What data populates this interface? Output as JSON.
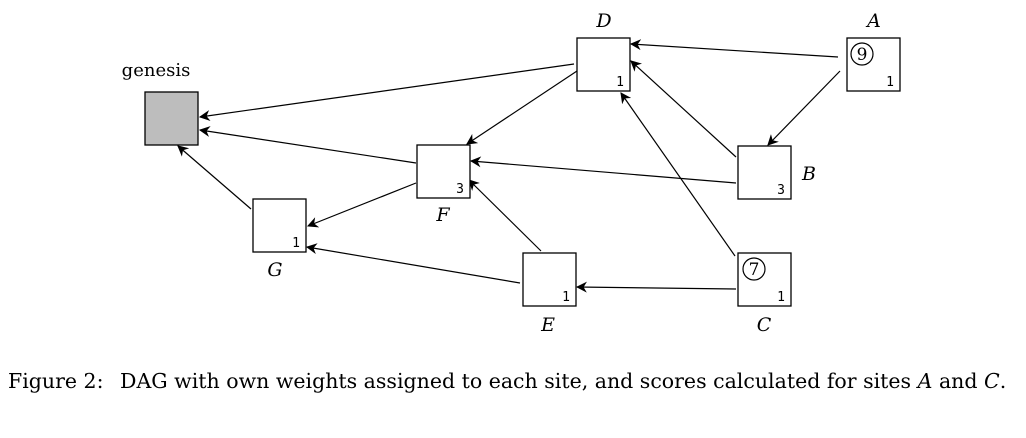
{
  "figure": {
    "genesis_label": "genesis",
    "nodes": [
      {
        "id": "A",
        "label": "A",
        "weight": "1",
        "score": "9"
      },
      {
        "id": "B",
        "label": "B",
        "weight": "3"
      },
      {
        "id": "C",
        "label": "C",
        "weight": "1",
        "score": "7"
      },
      {
        "id": "D",
        "label": "D",
        "weight": "1"
      },
      {
        "id": "E",
        "label": "E",
        "weight": "1"
      },
      {
        "id": "F",
        "label": "F",
        "weight": "3"
      },
      {
        "id": "G",
        "label": "G",
        "weight": "1"
      }
    ],
    "edges": [
      {
        "from": "A",
        "to": "D"
      },
      {
        "from": "A",
        "to": "B"
      },
      {
        "from": "B",
        "to": "D"
      },
      {
        "from": "B",
        "to": "F"
      },
      {
        "from": "C",
        "to": "D"
      },
      {
        "from": "C",
        "to": "E"
      },
      {
        "from": "D",
        "to": "genesis"
      },
      {
        "from": "D",
        "to": "F"
      },
      {
        "from": "E",
        "to": "F"
      },
      {
        "from": "E",
        "to": "G"
      },
      {
        "from": "F",
        "to": "genesis"
      },
      {
        "from": "F",
        "to": "G"
      },
      {
        "from": "G",
        "to": "genesis"
      }
    ]
  },
  "caption": {
    "prefix": "Figure 2:",
    "text_1": "DAG with own weights assigned to each site, and scores calculated for sites",
    "var_a": "A",
    "and": "and",
    "var_c": "C",
    "period": "."
  }
}
